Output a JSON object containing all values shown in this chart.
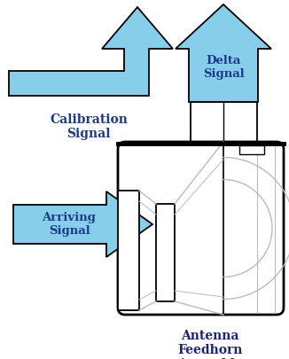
{
  "arrow_color": "#87CEEB",
  "arrow_edge_color": "#000000",
  "text_color_blue": "#1A3A8C",
  "text_color_dark": "#1A237E",
  "background_color": "#FFFFFF",
  "line_color": "#000000",
  "gray_line_color": "#BBBBBB",
  "labels": {
    "calibration": "Calibration\nSignal",
    "delta": "Delta\nSignal",
    "arriving": "Arriving\nSignal",
    "antenna": "Antenna\nFeedhorn\nAssembly"
  },
  "figsize": [
    3.26,
    4.05
  ],
  "dpi": 100
}
